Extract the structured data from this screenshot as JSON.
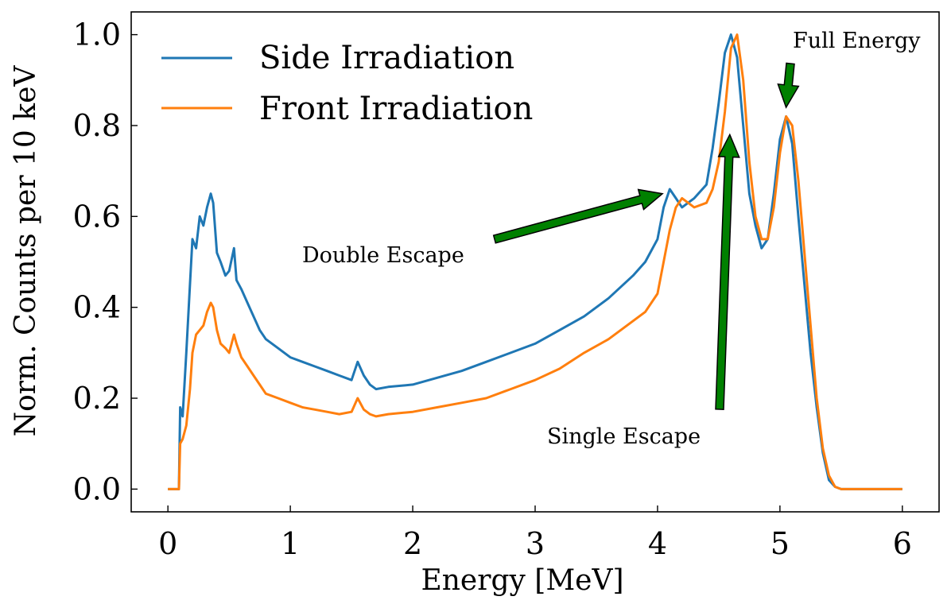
{
  "chart_data": {
    "type": "line",
    "title": "",
    "xlabel": "Energy [MeV]",
    "ylabel": "Norm. Counts per 10 keV",
    "xlim": [
      -0.3,
      6.3
    ],
    "ylim": [
      -0.05,
      1.05
    ],
    "xticks": [
      0,
      1,
      2,
      3,
      4,
      5,
      6
    ],
    "yticks": [
      0.0,
      0.2,
      0.4,
      0.6,
      0.8,
      1.0
    ],
    "xtick_labels": [
      "0",
      "1",
      "2",
      "3",
      "4",
      "5",
      "6"
    ],
    "ytick_labels": [
      "0.0",
      "0.2",
      "0.4",
      "0.6",
      "0.8",
      "1.0"
    ],
    "grid": false,
    "legend_position": "top-left",
    "series": [
      {
        "name": "Side Irradiation",
        "color": "#1f77b4",
        "x": [
          0,
          0.09,
          0.1,
          0.12,
          0.15,
          0.18,
          0.2,
          0.23,
          0.26,
          0.29,
          0.32,
          0.35,
          0.37,
          0.4,
          0.43,
          0.47,
          0.5,
          0.54,
          0.56,
          0.6,
          0.65,
          0.7,
          0.75,
          0.8,
          0.9,
          1.0,
          1.1,
          1.2,
          1.3,
          1.4,
          1.5,
          1.55,
          1.6,
          1.65,
          1.7,
          1.8,
          2.0,
          2.2,
          2.4,
          2.6,
          2.8,
          3.0,
          3.2,
          3.4,
          3.6,
          3.8,
          3.9,
          4.0,
          4.05,
          4.1,
          4.15,
          4.2,
          4.3,
          4.4,
          4.45,
          4.5,
          4.55,
          4.6,
          4.65,
          4.7,
          4.75,
          4.8,
          4.85,
          4.9,
          4.95,
          5.0,
          5.05,
          5.1,
          5.15,
          5.2,
          5.25,
          5.3,
          5.35,
          5.4,
          5.45,
          5.5,
          6.0
        ],
        "values": [
          0,
          0,
          0.18,
          0.16,
          0.3,
          0.45,
          0.55,
          0.53,
          0.6,
          0.58,
          0.62,
          0.65,
          0.63,
          0.52,
          0.5,
          0.47,
          0.48,
          0.53,
          0.46,
          0.44,
          0.41,
          0.38,
          0.35,
          0.33,
          0.31,
          0.29,
          0.28,
          0.27,
          0.26,
          0.25,
          0.24,
          0.28,
          0.25,
          0.23,
          0.22,
          0.225,
          0.23,
          0.245,
          0.26,
          0.28,
          0.3,
          0.32,
          0.35,
          0.38,
          0.42,
          0.47,
          0.5,
          0.55,
          0.62,
          0.66,
          0.64,
          0.62,
          0.64,
          0.67,
          0.75,
          0.85,
          0.96,
          1.0,
          0.95,
          0.8,
          0.65,
          0.58,
          0.53,
          0.55,
          0.65,
          0.77,
          0.82,
          0.76,
          0.6,
          0.45,
          0.3,
          0.18,
          0.08,
          0.02,
          0.005,
          0,
          0
        ]
      },
      {
        "name": "Front Irradiation",
        "color": "#ff7f0e",
        "x": [
          0,
          0.09,
          0.1,
          0.12,
          0.15,
          0.18,
          0.2,
          0.23,
          0.26,
          0.29,
          0.32,
          0.35,
          0.37,
          0.4,
          0.43,
          0.47,
          0.5,
          0.54,
          0.56,
          0.6,
          0.65,
          0.7,
          0.75,
          0.8,
          0.9,
          1.0,
          1.1,
          1.2,
          1.3,
          1.4,
          1.5,
          1.55,
          1.6,
          1.65,
          1.7,
          1.8,
          2.0,
          2.2,
          2.4,
          2.6,
          2.8,
          3.0,
          3.2,
          3.4,
          3.6,
          3.8,
          3.9,
          4.0,
          4.05,
          4.1,
          4.15,
          4.2,
          4.3,
          4.4,
          4.45,
          4.5,
          4.55,
          4.6,
          4.65,
          4.7,
          4.75,
          4.8,
          4.85,
          4.9,
          4.95,
          5.0,
          5.05,
          5.1,
          5.15,
          5.2,
          5.25,
          5.3,
          5.35,
          5.4,
          5.45,
          5.5,
          6.0
        ],
        "values": [
          0,
          0,
          0.1,
          0.11,
          0.14,
          0.22,
          0.3,
          0.34,
          0.35,
          0.36,
          0.39,
          0.41,
          0.4,
          0.35,
          0.32,
          0.31,
          0.3,
          0.34,
          0.32,
          0.29,
          0.27,
          0.25,
          0.23,
          0.21,
          0.2,
          0.19,
          0.18,
          0.175,
          0.17,
          0.165,
          0.17,
          0.2,
          0.175,
          0.165,
          0.16,
          0.165,
          0.17,
          0.18,
          0.19,
          0.2,
          0.22,
          0.24,
          0.265,
          0.3,
          0.33,
          0.37,
          0.39,
          0.43,
          0.5,
          0.57,
          0.62,
          0.64,
          0.62,
          0.63,
          0.66,
          0.72,
          0.83,
          0.97,
          1.0,
          0.9,
          0.72,
          0.6,
          0.55,
          0.55,
          0.62,
          0.74,
          0.82,
          0.8,
          0.68,
          0.52,
          0.36,
          0.2,
          0.09,
          0.03,
          0.005,
          0,
          0
        ]
      }
    ],
    "annotations": [
      {
        "text": "Full Energy",
        "arrow_to": [
          5.05,
          0.84
        ]
      },
      {
        "text": "Double Escape",
        "arrow_to": [
          4.04,
          0.65
        ]
      },
      {
        "text": "Single Escape",
        "arrow_to": [
          4.59,
          0.78
        ]
      }
    ],
    "annotation_arrow_color": "#008000"
  }
}
